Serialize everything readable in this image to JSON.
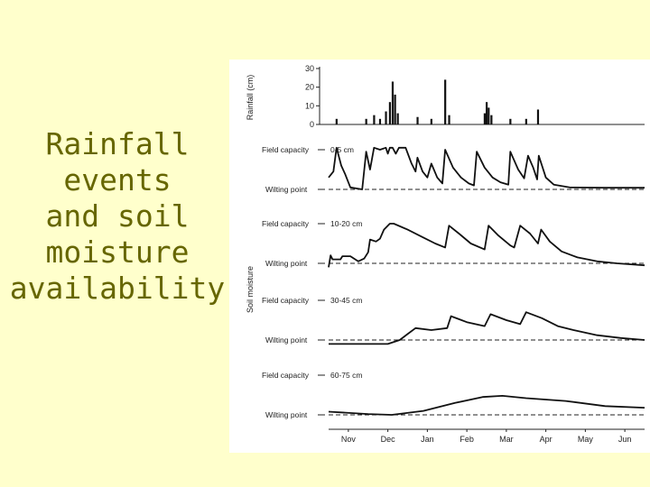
{
  "slide": {
    "title_lines": [
      "Rainfall",
      "events",
      "and soil",
      "moisture",
      "availability"
    ]
  },
  "chart_data": {
    "type": "line",
    "rainfall_axis": {
      "label": "Rainfall (cm)",
      "ticks": [
        0,
        10,
        20,
        30
      ],
      "ylim": [
        0,
        30
      ]
    },
    "soil_axis_label": "Soil moisture",
    "months": [
      "Nov",
      "Dec",
      "Jan",
      "Feb",
      "Mar",
      "Apr",
      "May",
      "Jun"
    ],
    "xlim": [
      0,
      8
    ],
    "rain_events": [
      {
        "x": 0.2,
        "v": 3
      },
      {
        "x": 0.95,
        "v": 3
      },
      {
        "x": 1.15,
        "v": 5
      },
      {
        "x": 1.3,
        "v": 3
      },
      {
        "x": 1.45,
        "v": 7
      },
      {
        "x": 1.55,
        "v": 12
      },
      {
        "x": 1.62,
        "v": 23
      },
      {
        "x": 1.68,
        "v": 16
      },
      {
        "x": 1.75,
        "v": 6
      },
      {
        "x": 2.25,
        "v": 4
      },
      {
        "x": 2.6,
        "v": 3
      },
      {
        "x": 2.95,
        "v": 24
      },
      {
        "x": 3.05,
        "v": 5
      },
      {
        "x": 3.95,
        "v": 6
      },
      {
        "x": 4.0,
        "v": 12
      },
      {
        "x": 4.05,
        "v": 9
      },
      {
        "x": 4.12,
        "v": 5
      },
      {
        "x": 4.6,
        "v": 3
      },
      {
        "x": 5.0,
        "v": 3
      },
      {
        "x": 5.3,
        "v": 8
      }
    ],
    "panels": [
      {
        "depth": "0-5 cm",
        "field_capacity_label": "Field capacity",
        "wilting_point_label": "Wilting point",
        "points": [
          [
            0,
            0.3
          ],
          [
            0.12,
            0.45
          ],
          [
            0.2,
            1.05
          ],
          [
            0.32,
            0.6
          ],
          [
            0.42,
            0.38
          ],
          [
            0.55,
            0.05
          ],
          [
            0.85,
            0
          ],
          [
            0.95,
            0.95
          ],
          [
            1.05,
            0.5
          ],
          [
            1.15,
            1.05
          ],
          [
            1.3,
            1.0
          ],
          [
            1.45,
            1.05
          ],
          [
            1.5,
            0.9
          ],
          [
            1.55,
            1.05
          ],
          [
            1.62,
            1.05
          ],
          [
            1.7,
            0.9
          ],
          [
            1.78,
            1.05
          ],
          [
            1.95,
            1.05
          ],
          [
            2.1,
            0.65
          ],
          [
            2.2,
            0.45
          ],
          [
            2.25,
            0.8
          ],
          [
            2.38,
            0.45
          ],
          [
            2.5,
            0.3
          ],
          [
            2.6,
            0.65
          ],
          [
            2.75,
            0.3
          ],
          [
            2.88,
            0.15
          ],
          [
            2.95,
            1.0
          ],
          [
            3.15,
            0.55
          ],
          [
            3.35,
            0.3
          ],
          [
            3.55,
            0.15
          ],
          [
            3.68,
            0.1
          ],
          [
            3.75,
            0.95
          ],
          [
            3.95,
            0.55
          ],
          [
            4.15,
            0.3
          ],
          [
            4.35,
            0.18
          ],
          [
            4.55,
            0.12
          ],
          [
            4.6,
            0.95
          ],
          [
            4.8,
            0.5
          ],
          [
            4.95,
            0.28
          ],
          [
            5.05,
            0.85
          ],
          [
            5.18,
            0.55
          ],
          [
            5.28,
            0.25
          ],
          [
            5.32,
            0.85
          ],
          [
            5.5,
            0.3
          ],
          [
            5.7,
            0.12
          ],
          [
            6.1,
            0.05
          ],
          [
            7.0,
            0.04
          ],
          [
            8.0,
            0.04
          ]
        ]
      },
      {
        "depth": "10-20 cm",
        "field_capacity_label": "Field capacity",
        "wilting_point_label": "Wilting point",
        "points": [
          [
            0,
            -0.1
          ],
          [
            0.05,
            0.2
          ],
          [
            0.1,
            0.1
          ],
          [
            0.3,
            0.1
          ],
          [
            0.35,
            0.18
          ],
          [
            0.55,
            0.18
          ],
          [
            0.75,
            0.05
          ],
          [
            0.9,
            0.12
          ],
          [
            1.0,
            0.28
          ],
          [
            1.05,
            0.6
          ],
          [
            1.2,
            0.55
          ],
          [
            1.3,
            0.62
          ],
          [
            1.4,
            0.85
          ],
          [
            1.55,
            1.0
          ],
          [
            1.65,
            1.0
          ],
          [
            2.0,
            0.85
          ],
          [
            2.4,
            0.65
          ],
          [
            2.7,
            0.5
          ],
          [
            2.95,
            0.4
          ],
          [
            3.05,
            0.95
          ],
          [
            3.3,
            0.75
          ],
          [
            3.6,
            0.5
          ],
          [
            3.95,
            0.35
          ],
          [
            4.05,
            0.95
          ],
          [
            4.3,
            0.7
          ],
          [
            4.6,
            0.45
          ],
          [
            4.7,
            0.4
          ],
          [
            4.85,
            0.95
          ],
          [
            5.1,
            0.75
          ],
          [
            5.3,
            0.5
          ],
          [
            5.38,
            0.85
          ],
          [
            5.6,
            0.55
          ],
          [
            5.9,
            0.3
          ],
          [
            6.3,
            0.15
          ],
          [
            6.8,
            0.05
          ],
          [
            7.3,
            0.0
          ],
          [
            8.0,
            -0.05
          ]
        ]
      },
      {
        "depth": "30-45 cm",
        "field_capacity_label": "Field capacity",
        "wilting_point_label": "Wilting point",
        "points": [
          [
            0,
            -0.1
          ],
          [
            1.5,
            -0.1
          ],
          [
            1.8,
            0.0
          ],
          [
            2.0,
            0.15
          ],
          [
            2.2,
            0.3
          ],
          [
            2.6,
            0.25
          ],
          [
            3.0,
            0.3
          ],
          [
            3.1,
            0.6
          ],
          [
            3.5,
            0.45
          ],
          [
            3.95,
            0.35
          ],
          [
            4.1,
            0.65
          ],
          [
            4.5,
            0.5
          ],
          [
            4.85,
            0.4
          ],
          [
            5.0,
            0.7
          ],
          [
            5.4,
            0.55
          ],
          [
            5.8,
            0.35
          ],
          [
            6.2,
            0.25
          ],
          [
            6.8,
            0.12
          ],
          [
            7.4,
            0.05
          ],
          [
            8.0,
            0.0
          ]
        ]
      },
      {
        "depth": "60-75 cm",
        "field_capacity_label": "Field capacity",
        "wilting_point_label": "Wilting point",
        "points": [
          [
            0,
            0.08
          ],
          [
            1.0,
            0.02
          ],
          [
            1.6,
            0.0
          ],
          [
            2.4,
            0.1
          ],
          [
            3.2,
            0.3
          ],
          [
            3.9,
            0.45
          ],
          [
            4.4,
            0.48
          ],
          [
            5.0,
            0.42
          ],
          [
            6.0,
            0.35
          ],
          [
            7.0,
            0.22
          ],
          [
            8.0,
            0.18
          ]
        ]
      }
    ]
  }
}
